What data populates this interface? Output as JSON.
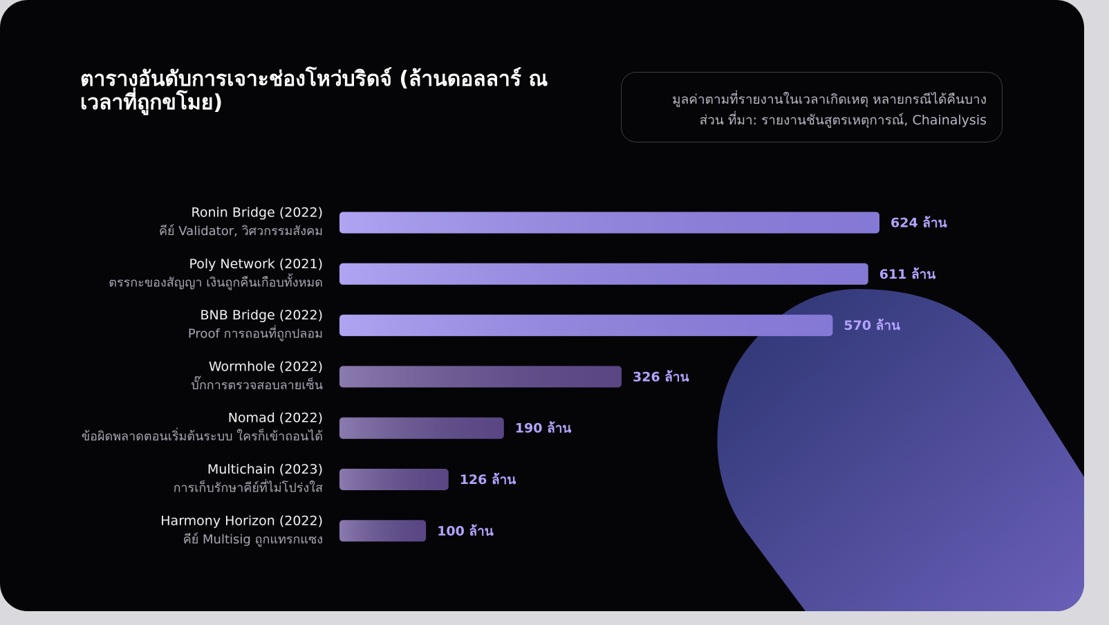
{
  "chart_data": {
    "type": "bar",
    "title": "ตารางอันดับการเจาะช่องโหว่บริดจ์ (ล้านดอลลาร์ ณ เวลาที่ถูกขโมย)",
    "note": [
      "มูลค่าตามที่รายงานในเวลาเกิดเหตุ หลายกรณีได้คืนบาง",
      "ส่วน ที่มา: รายงานชันสูตรเหตุการณ์, Chainalysis"
    ],
    "categories": [
      "Ronin Bridge (2022)",
      "Poly Network (2021)",
      "BNB Bridge (2022)",
      "Wormhole (2022)",
      "Nomad (2022)",
      "Multichain (2023)",
      "Harmony Horizon (2022)"
    ],
    "descriptions": [
      "คีย์ Validator, วิศวกรรมสังคม",
      "ตรรกะของสัญญา เงินถูกคืนเกือบทั้งหมด",
      "Proof การถอนที่ถูกปลอม",
      "บั๊กการตรวจสอบลายเซ็น",
      "ข้อผิดพลาดตอนเริ่มต้นระบบ ใครก็เข้าถอนได้",
      "การเก็บรักษาคีย์ที่ไม่โปร่งใส",
      "คีย์ Multisig ถูกแทรกแซง"
    ],
    "values": [
      624,
      611,
      570,
      326,
      190,
      126,
      100
    ],
    "value_labels": [
      "624 ล้าน",
      "611 ล้าน",
      "570 ล้าน",
      "326 ล้าน",
      "190 ล้าน",
      "126 ล้าน",
      "100 ล้าน"
    ],
    "colors": [
      "#9486ee",
      "#9486ee",
      "#9486ee",
      "#634e93",
      "#634e93",
      "#634e93",
      "#634e93"
    ]
  }
}
